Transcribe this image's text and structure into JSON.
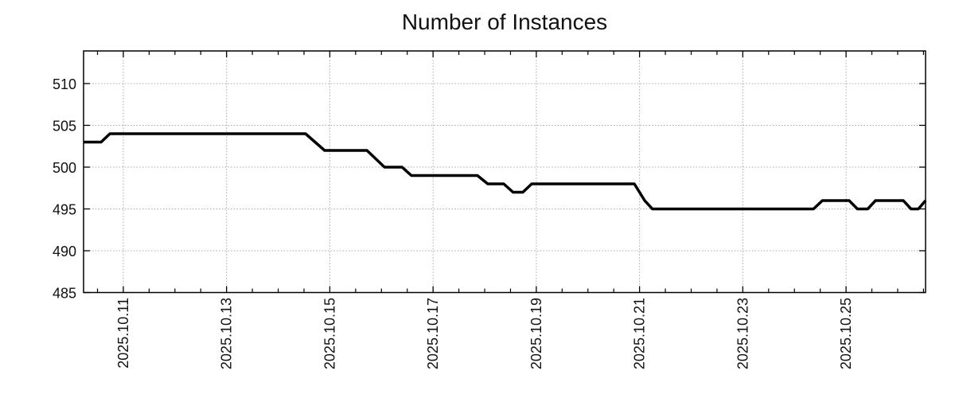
{
  "header": {
    "title": "Number of Instances"
  },
  "colors": {
    "background": "#ffffff",
    "line": "#000000",
    "grid": "#a8a8a8",
    "axis": "#000000",
    "text": "#111111"
  },
  "chart_data": {
    "type": "line",
    "title": "Number of Instances",
    "xlabel": "",
    "ylabel": "",
    "grid": true,
    "legend": "none",
    "x_axis": {
      "kind": "time",
      "tick_labels": [
        "2025.10.11",
        "2025.10.13",
        "2025.10.15",
        "2025.10.17",
        "2025.10.19",
        "2025.10.21",
        "2025.10.23",
        "2025.10.25"
      ],
      "tick_positions_day_of_oct_2025": [
        11,
        13,
        15,
        17,
        19,
        21,
        23,
        25
      ],
      "minor_tick_step_days": 0.5,
      "xlim_day_of_oct_2025": [
        10.23,
        26.54
      ],
      "tick_label_rotation_deg": 90
    },
    "y_axis": {
      "tick_labels": [
        "485",
        "490",
        "495",
        "500",
        "505",
        "510"
      ],
      "tick_values": [
        485,
        490,
        495,
        500,
        505,
        510
      ],
      "ylim": [
        485,
        513.9
      ]
    },
    "series": [
      {
        "name": "Number of Instances",
        "color": "#000000",
        "line_width": 3.5,
        "points_day_value": [
          [
            10.23,
            503
          ],
          [
            10.57,
            503
          ],
          [
            10.74,
            504
          ],
          [
            14.53,
            504
          ],
          [
            14.9,
            502
          ],
          [
            15.72,
            502
          ],
          [
            16.06,
            500
          ],
          [
            16.4,
            500
          ],
          [
            16.58,
            499
          ],
          [
            17.86,
            499
          ],
          [
            18.06,
            498
          ],
          [
            18.37,
            498
          ],
          [
            18.55,
            497
          ],
          [
            18.74,
            497
          ],
          [
            18.91,
            498
          ],
          [
            20.9,
            498
          ],
          [
            21.1,
            496
          ],
          [
            21.25,
            495
          ],
          [
            24.37,
            495
          ],
          [
            24.54,
            496
          ],
          [
            25.06,
            496
          ],
          [
            25.22,
            495
          ],
          [
            25.42,
            495
          ],
          [
            25.57,
            496
          ],
          [
            26.11,
            496
          ],
          [
            26.26,
            495
          ],
          [
            26.4,
            495
          ],
          [
            26.54,
            496
          ]
        ]
      }
    ]
  }
}
